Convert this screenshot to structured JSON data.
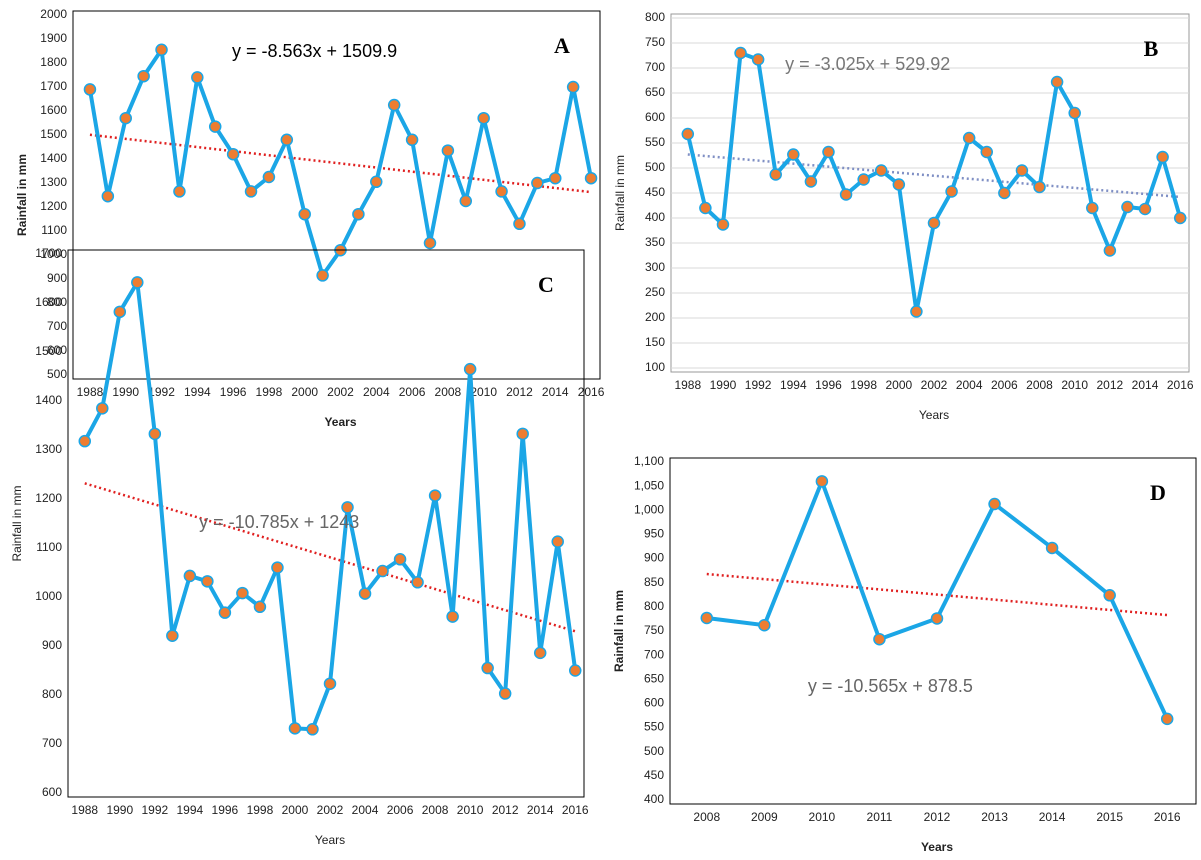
{
  "chart_data": [
    {
      "type": "line",
      "panel_label": "A",
      "x_label": "Years",
      "y_label": "Rainfall in mm",
      "x": [
        1988,
        1989,
        1990,
        1991,
        1992,
        1993,
        1994,
        1995,
        1996,
        1997,
        1998,
        1999,
        2000,
        2001,
        2002,
        2003,
        2004,
        2005,
        2006,
        2007,
        2008,
        2009,
        2010,
        2011,
        2012,
        2013,
        2014,
        2015,
        2016
      ],
      "values": [
        1690,
        1245,
        1570,
        1745,
        1855,
        1265,
        1740,
        1535,
        1420,
        1265,
        1325,
        1480,
        1170,
        915,
        1020,
        1170,
        1305,
        1625,
        1480,
        1050,
        1435,
        1225,
        1570,
        1265,
        1130,
        1300,
        1320,
        1700,
        1320
      ],
      "color": "#1ba6e6",
      "marker_color": "#ed7d31",
      "xlim": [
        1987.5,
        2016.5
      ],
      "xticks": [
        1988,
        1990,
        1992,
        1994,
        1996,
        1998,
        2000,
        2002,
        2004,
        2006,
        2008,
        2010,
        2012,
        2014,
        2016
      ],
      "ylim": [
        500,
        2000
      ],
      "yticks": [
        500,
        600,
        700,
        800,
        900,
        1000,
        1100,
        1200,
        1300,
        1400,
        1500,
        1600,
        1700,
        1800,
        1900,
        2000
      ],
      "grid": false,
      "trendline": {
        "label": "y = -8.563x + 1509.9",
        "color": "#e02020",
        "start": 1501,
        "end": 1262
      }
    },
    {
      "type": "line",
      "panel_label": "B",
      "x_label": "Years",
      "y_label": "Rainfall in mm",
      "x": [
        1988,
        1989,
        1990,
        1991,
        1992,
        1993,
        1994,
        1995,
        1996,
        1997,
        1998,
        1999,
        2000,
        2001,
        2002,
        2003,
        2004,
        2005,
        2006,
        2007,
        2008,
        2009,
        2010,
        2011,
        2012,
        2013,
        2014,
        2015,
        2016
      ],
      "values": [
        568,
        420,
        387,
        730,
        717,
        487,
        527,
        473,
        532,
        447,
        477,
        495,
        467,
        213,
        390,
        453,
        560,
        532,
        450,
        495,
        462,
        672,
        610,
        420,
        335,
        422,
        418,
        522,
        400
      ],
      "color": "#1ba6e6",
      "marker_color": "#ed7d31",
      "xlim": [
        1987.5,
        2016.5
      ],
      "xticks": [
        1988,
        1990,
        1992,
        1994,
        1996,
        1998,
        2000,
        2002,
        2004,
        2006,
        2008,
        2010,
        2012,
        2014,
        2016
      ],
      "ylim": [
        100,
        800
      ],
      "yticks": [
        100,
        150,
        200,
        250,
        300,
        350,
        400,
        450,
        500,
        550,
        600,
        650,
        700,
        750,
        800
      ],
      "grid": true,
      "trendline": {
        "label": "y = -3.025x + 529.92",
        "color": "#7f8fc4",
        "start": 527,
        "end": 442
      }
    },
    {
      "type": "line",
      "panel_label": "C",
      "x_label": "Years",
      "y_label": "Rainfall in mm",
      "x": [
        1988,
        1989,
        1990,
        1991,
        1992,
        1993,
        1994,
        1995,
        1996,
        1997,
        1998,
        1999,
        2000,
        2001,
        2002,
        2003,
        2004,
        2005,
        2006,
        2007,
        2008,
        2009,
        2010,
        2011,
        2012,
        2013,
        2014,
        2015,
        2016
      ],
      "values": [
        1318,
        1385,
        1582,
        1642,
        1333,
        921,
        1043,
        1032,
        968,
        1008,
        980,
        1060,
        732,
        730,
        823,
        1183,
        1007,
        1053,
        1077,
        1030,
        1207,
        960,
        1465,
        855,
        803,
        1333,
        886,
        1113,
        850
      ],
      "color": "#1ba6e6",
      "marker_color": "#ed7d31",
      "xlim": [
        1987.5,
        2016.5
      ],
      "xticks": [
        1988,
        1990,
        1992,
        1994,
        1996,
        1998,
        2000,
        2002,
        2004,
        2006,
        2008,
        2010,
        2012,
        2014,
        2016
      ],
      "ylim": [
        600,
        1700
      ],
      "yticks": [
        600,
        700,
        800,
        900,
        1000,
        1100,
        1200,
        1300,
        1400,
        1500,
        1600,
        1700
      ],
      "grid": false,
      "trendline": {
        "label": "y = -10.785x + 1243",
        "color": "#e02020",
        "start": 1232,
        "end": 930
      }
    },
    {
      "type": "line",
      "panel_label": "D",
      "x_label": "Years",
      "y_label": "Rainfall in mm",
      "x": [
        2008,
        2009,
        2010,
        2011,
        2012,
        2013,
        2014,
        2015,
        2016
      ],
      "values": [
        777,
        762,
        1060,
        733,
        776,
        1013,
        922,
        824,
        568
      ],
      "color": "#1ba6e6",
      "marker_color": "#ed7d31",
      "xlim": [
        2007.5,
        2016.5
      ],
      "xticks": [
        2008,
        2009,
        2010,
        2011,
        2012,
        2013,
        2014,
        2015,
        2016
      ],
      "ylim": [
        400,
        1100
      ],
      "yticks": [
        400,
        450,
        500,
        550,
        600,
        650,
        700,
        750,
        800,
        850,
        900,
        950,
        {
          "value": 1000,
          "label": "1,000"
        },
        {
          "value": 1050,
          "label": "1,050"
        },
        {
          "value": 1100,
          "label": "1,100"
        }
      ],
      "grid": false,
      "trendline": {
        "label": "y = -10.565x + 878.5",
        "color": "#e02020",
        "start": 868,
        "end": 783
      }
    }
  ]
}
